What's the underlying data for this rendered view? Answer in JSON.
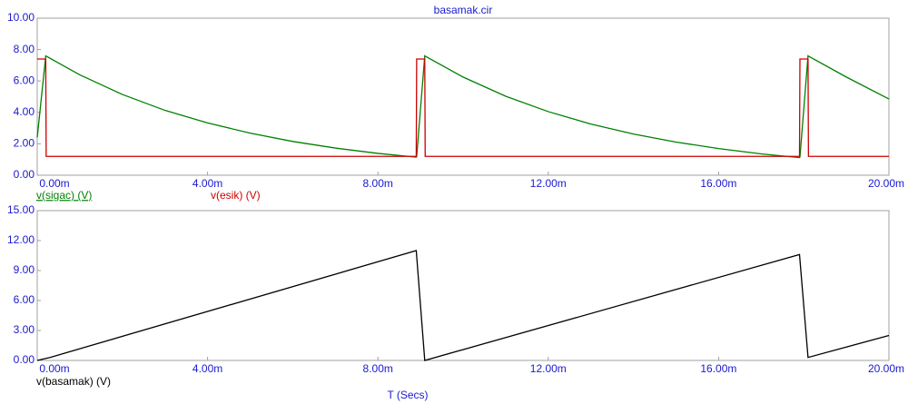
{
  "chart_data": [
    {
      "type": "line",
      "title": "basamak.cir",
      "x": [
        0,
        0.0002,
        0.00021,
        0.001,
        0.002,
        0.003,
        0.004,
        0.005,
        0.006,
        0.007,
        0.008,
        0.0089,
        0.00891,
        0.0091,
        0.00911,
        0.01,
        0.011,
        0.012,
        0.013,
        0.014,
        0.015,
        0.016,
        0.017,
        0.0179,
        0.01791,
        0.0181,
        0.01811,
        0.019,
        0.02
      ],
      "series": [
        {
          "name": "v(sigac) (V)",
          "color": "#008000",
          "values": [
            2.4,
            7.6,
            7.58,
            6.39,
            5.14,
            4.13,
            3.33,
            2.68,
            2.15,
            1.73,
            1.39,
            1.15,
            1.18,
            7.6,
            7.58,
            6.25,
            5.03,
            4.05,
            3.26,
            2.62,
            2.11,
            1.7,
            1.36,
            1.12,
            1.15,
            7.6,
            7.58,
            6.25,
            4.85
          ]
        },
        {
          "name": "v(esik) (V)",
          "color": "#cc0000",
          "values": [
            7.4,
            7.4,
            1.2,
            1.2,
            1.2,
            1.2,
            1.2,
            1.2,
            1.2,
            1.2,
            1.2,
            1.2,
            7.4,
            7.4,
            1.2,
            1.2,
            1.2,
            1.2,
            1.2,
            1.2,
            1.2,
            1.2,
            1.2,
            1.2,
            7.4,
            7.4,
            1.2,
            1.2,
            1.2
          ]
        }
      ],
      "xlim": [
        0,
        0.02
      ],
      "xticks": [
        {
          "value": 0,
          "label": "0.00m"
        },
        {
          "value": 0.004,
          "label": "4.00m"
        },
        {
          "value": 0.008,
          "label": "8.00m"
        },
        {
          "value": 0.012,
          "label": "12.00m"
        },
        {
          "value": 0.016,
          "label": "16.00m"
        },
        {
          "value": 0.02,
          "label": "20.00m"
        }
      ],
      "ylim": [
        0,
        10
      ],
      "yticks": [
        {
          "value": 0,
          "label": "0.00"
        },
        {
          "value": 2,
          "label": "2.00"
        },
        {
          "value": 4,
          "label": "4.00"
        },
        {
          "value": 6,
          "label": "6.00"
        },
        {
          "value": 8,
          "label": "8.00"
        },
        {
          "value": 10,
          "label": "10.00"
        }
      ]
    },
    {
      "type": "line",
      "x_label": "T (Secs)",
      "x": [
        0,
        0.0003,
        0.0089,
        0.0091,
        0.0179,
        0.0181,
        0.02
      ],
      "series": [
        {
          "name": "v(basamak) (V)",
          "color": "#000000",
          "values": [
            0,
            0.3,
            11.0,
            0,
            10.6,
            0.3,
            2.5
          ]
        }
      ],
      "xlim": [
        0,
        0.02
      ],
      "xticks": [
        {
          "value": 0,
          "label": "0.00m"
        },
        {
          "value": 0.004,
          "label": "4.00m"
        },
        {
          "value": 0.008,
          "label": "8.00m"
        },
        {
          "value": 0.012,
          "label": "12.00m"
        },
        {
          "value": 0.016,
          "label": "16.00m"
        },
        {
          "value": 0.02,
          "label": "20.00m"
        }
      ],
      "ylim": [
        0,
        15
      ],
      "yticks": [
        {
          "value": 0,
          "label": "0.00"
        },
        {
          "value": 3,
          "label": "3.00"
        },
        {
          "value": 6,
          "label": "6.00"
        },
        {
          "value": 9,
          "label": "9.00"
        },
        {
          "value": 12,
          "label": "12.00"
        },
        {
          "value": 15,
          "label": "15.00"
        }
      ]
    }
  ]
}
